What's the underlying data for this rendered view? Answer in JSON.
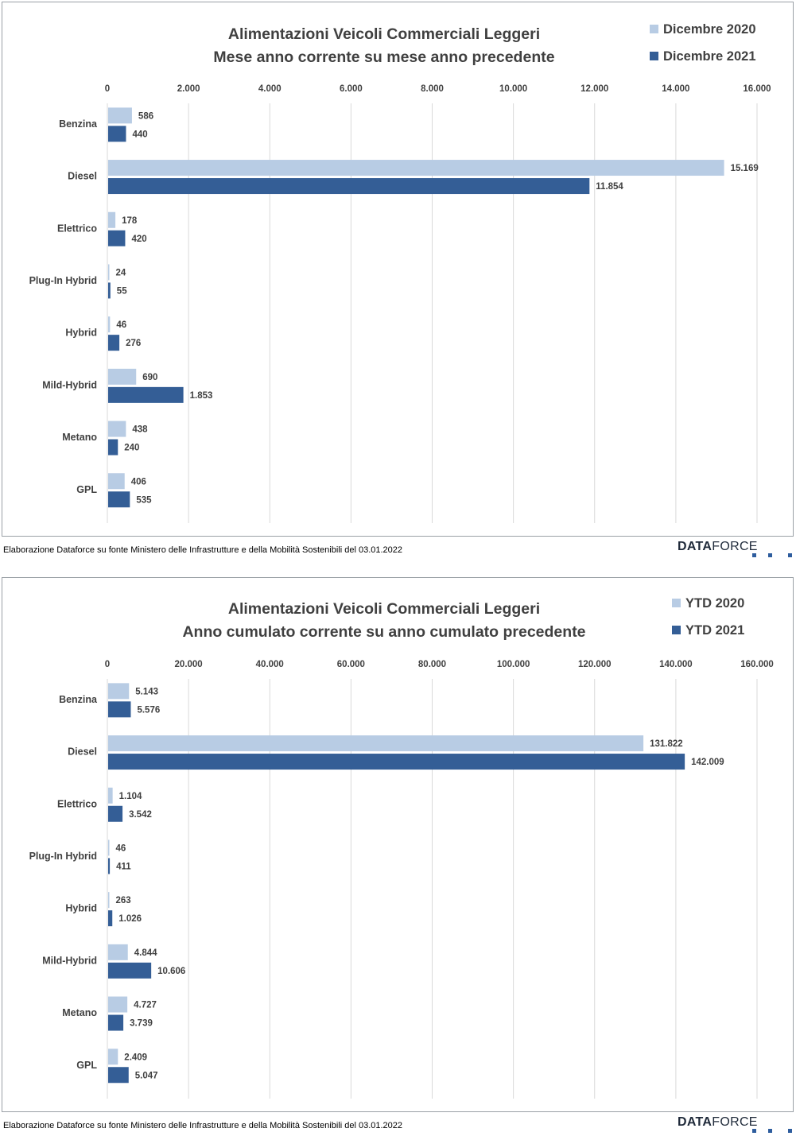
{
  "colors": {
    "light": "#b8cce4",
    "dark": "#345e96",
    "grid": "#d9d9d9",
    "text": "#404040"
  },
  "source_text": "Elaborazione Dataforce su fonte Ministero delle Infrastrutture e della Mobilità Sostenibili del 03.01.2022",
  "logo": {
    "bold": "DATA",
    "light": "FORCE"
  },
  "chart_data": [
    {
      "type": "bar",
      "orientation": "horizontal",
      "title": [
        "Alimentazioni Veicoli Commerciali Leggeri",
        "Mese anno corrente su mese anno precedente"
      ],
      "categories": [
        "Benzina",
        "Diesel",
        "Elettrico",
        "Plug-In Hybrid",
        "Hybrid",
        "Mild-Hybrid",
        "Metano",
        "GPL"
      ],
      "series": [
        {
          "name": "Dicembre 2020",
          "values": [
            586,
            15169,
            178,
            24,
            46,
            690,
            438,
            406
          ],
          "labels": [
            "586",
            "15.169",
            "178",
            "24",
            "46",
            "690",
            "438",
            "406"
          ]
        },
        {
          "name": "Dicembre 2021",
          "values": [
            440,
            11854,
            420,
            55,
            276,
            1853,
            240,
            535
          ],
          "labels": [
            "440",
            "11.854",
            "420",
            "55",
            "276",
            "1.853",
            "240",
            "535"
          ]
        }
      ],
      "xlim": [
        0,
        16000
      ],
      "ticks": [
        0,
        2000,
        4000,
        6000,
        8000,
        10000,
        12000,
        14000,
        16000
      ],
      "tick_labels": [
        "0",
        "2.000",
        "4.000",
        "6.000",
        "8.000",
        "10.000",
        "12.000",
        "14.000",
        "16.000"
      ],
      "grid": true,
      "legend": "top-right"
    },
    {
      "type": "bar",
      "orientation": "horizontal",
      "title": [
        "Alimentazioni Veicoli Commerciali Leggeri",
        "Anno cumulato corrente su anno cumulato precedente"
      ],
      "categories": [
        "Benzina",
        "Diesel",
        "Elettrico",
        "Plug-In Hybrid",
        "Hybrid",
        "Mild-Hybrid",
        "Metano",
        "GPL"
      ],
      "series": [
        {
          "name": "YTD 2020",
          "values": [
            5143,
            131822,
            1104,
            46,
            263,
            4844,
            4727,
            2409
          ],
          "labels": [
            "5.143",
            "131.822",
            "1.104",
            "46",
            "263",
            "4.844",
            "4.727",
            "2.409"
          ]
        },
        {
          "name": "YTD 2021",
          "values": [
            5576,
            142009,
            3542,
            411,
            1026,
            10606,
            3739,
            5047
          ],
          "labels": [
            "5.576",
            "142.009",
            "3.542",
            "411",
            "1.026",
            "10.606",
            "3.739",
            "5.047"
          ]
        }
      ],
      "xlim": [
        0,
        160000
      ],
      "ticks": [
        0,
        20000,
        40000,
        60000,
        80000,
        100000,
        120000,
        140000,
        160000
      ],
      "tick_labels": [
        "0",
        "20.000",
        "40.000",
        "60.000",
        "80.000",
        "100.000",
        "120.000",
        "140.000",
        "160.000"
      ],
      "grid": true,
      "legend": "top-right"
    }
  ]
}
